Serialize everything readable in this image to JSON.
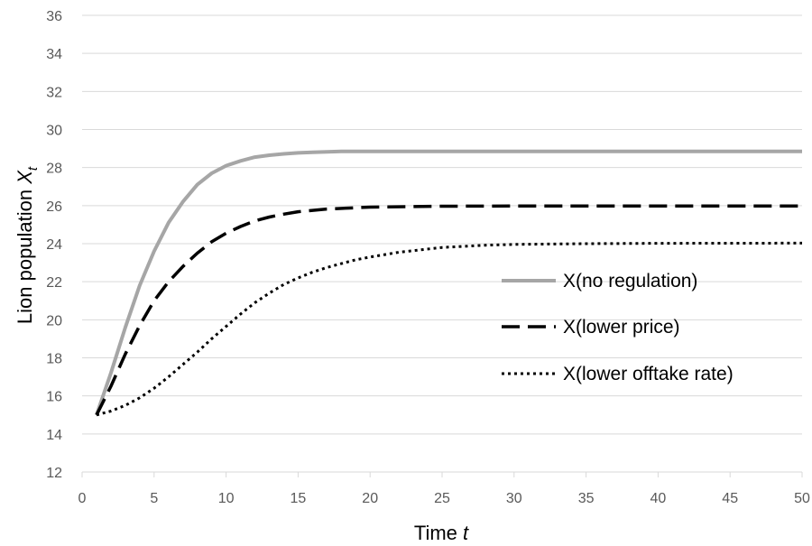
{
  "chart_data": {
    "type": "line",
    "xlabel": {
      "main": "Time ",
      "italic": "t"
    },
    "ylabel": {
      "main": "Lion population ",
      "italic": "X",
      "sub": "t"
    },
    "xlim": [
      0,
      50
    ],
    "ylim": [
      12,
      36
    ],
    "xticks": [
      0,
      5,
      10,
      15,
      20,
      25,
      30,
      35,
      40,
      45,
      50
    ],
    "yticks": [
      12,
      14,
      16,
      18,
      20,
      22,
      24,
      26,
      28,
      30,
      32,
      34,
      36
    ],
    "grid": "horizontal",
    "legend_position": "right",
    "series": [
      {
        "name": "X(no regulation)",
        "color": "#a6a6a6",
        "style": "solid",
        "points": [
          [
            1,
            15
          ],
          [
            2,
            17.2
          ],
          [
            3,
            19.6
          ],
          [
            4,
            21.8
          ],
          [
            5,
            23.6
          ],
          [
            6,
            25.1
          ],
          [
            7,
            26.2
          ],
          [
            8,
            27.1
          ],
          [
            9,
            27.7
          ],
          [
            10,
            28.1
          ],
          [
            11,
            28.35
          ],
          [
            12,
            28.55
          ],
          [
            13,
            28.65
          ],
          [
            14,
            28.72
          ],
          [
            15,
            28.77
          ],
          [
            16,
            28.8
          ],
          [
            18,
            28.85
          ],
          [
            20,
            28.85
          ],
          [
            30,
            28.85
          ],
          [
            40,
            28.85
          ],
          [
            50,
            28.85
          ]
        ]
      },
      {
        "name": "X(lower price)",
        "color": "#000000",
        "style": "dashed",
        "points": [
          [
            1,
            15
          ],
          [
            2,
            16.5
          ],
          [
            3,
            18.2
          ],
          [
            4,
            19.7
          ],
          [
            5,
            21.0
          ],
          [
            6,
            22.0
          ],
          [
            7,
            22.8
          ],
          [
            8,
            23.5
          ],
          [
            9,
            24.1
          ],
          [
            10,
            24.55
          ],
          [
            11,
            24.9
          ],
          [
            12,
            25.2
          ],
          [
            13,
            25.4
          ],
          [
            14,
            25.55
          ],
          [
            15,
            25.68
          ],
          [
            17,
            25.82
          ],
          [
            20,
            25.92
          ],
          [
            25,
            25.97
          ],
          [
            30,
            25.98
          ],
          [
            40,
            25.98
          ],
          [
            50,
            25.98
          ]
        ]
      },
      {
        "name": "X(lower offtake rate)",
        "color": "#000000",
        "style": "dotted",
        "points": [
          [
            1,
            15
          ],
          [
            2,
            15.2
          ],
          [
            3,
            15.5
          ],
          [
            4,
            15.9
          ],
          [
            5,
            16.4
          ],
          [
            6,
            17.0
          ],
          [
            7,
            17.65
          ],
          [
            8,
            18.3
          ],
          [
            9,
            19.0
          ],
          [
            10,
            19.65
          ],
          [
            11,
            20.3
          ],
          [
            12,
            20.9
          ],
          [
            13,
            21.4
          ],
          [
            14,
            21.85
          ],
          [
            15,
            22.2
          ],
          [
            16,
            22.5
          ],
          [
            17,
            22.75
          ],
          [
            18,
            22.95
          ],
          [
            19,
            23.15
          ],
          [
            20,
            23.3
          ],
          [
            22,
            23.55
          ],
          [
            25,
            23.8
          ],
          [
            28,
            23.92
          ],
          [
            30,
            23.96
          ],
          [
            35,
            24.0
          ],
          [
            40,
            24.02
          ],
          [
            50,
            24.03
          ]
        ]
      }
    ]
  }
}
